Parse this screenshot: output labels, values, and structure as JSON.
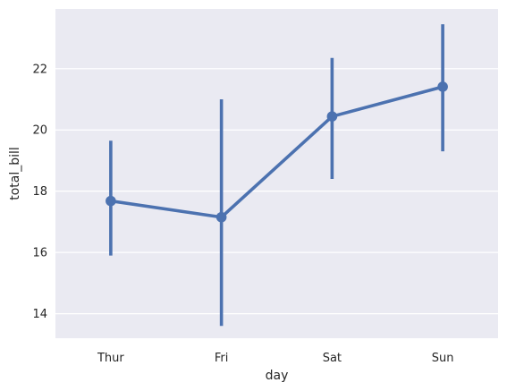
{
  "chart_data": {
    "type": "pointplot",
    "title": "",
    "xlabel": "day",
    "ylabel": "total_bill",
    "categories": [
      "Thur",
      "Fri",
      "Sat",
      "Sun"
    ],
    "series": [
      {
        "values": [
          17.68,
          17.15,
          20.44,
          21.41
        ],
        "ci_low": [
          15.9,
          13.6,
          18.4,
          19.3
        ],
        "ci_high": [
          19.65,
          21.0,
          22.35,
          23.45
        ]
      }
    ],
    "ylim": [
      13.2,
      23.95
    ],
    "yticks": [
      14,
      16,
      18,
      20,
      22
    ],
    "ytick_labels": [
      "14",
      "16",
      "18",
      "20",
      "22"
    ],
    "grid": true,
    "colors": {
      "background": "#EAEAF2",
      "grid": "#FFFFFF",
      "line": "#4C72B0",
      "text": "#262626"
    }
  }
}
